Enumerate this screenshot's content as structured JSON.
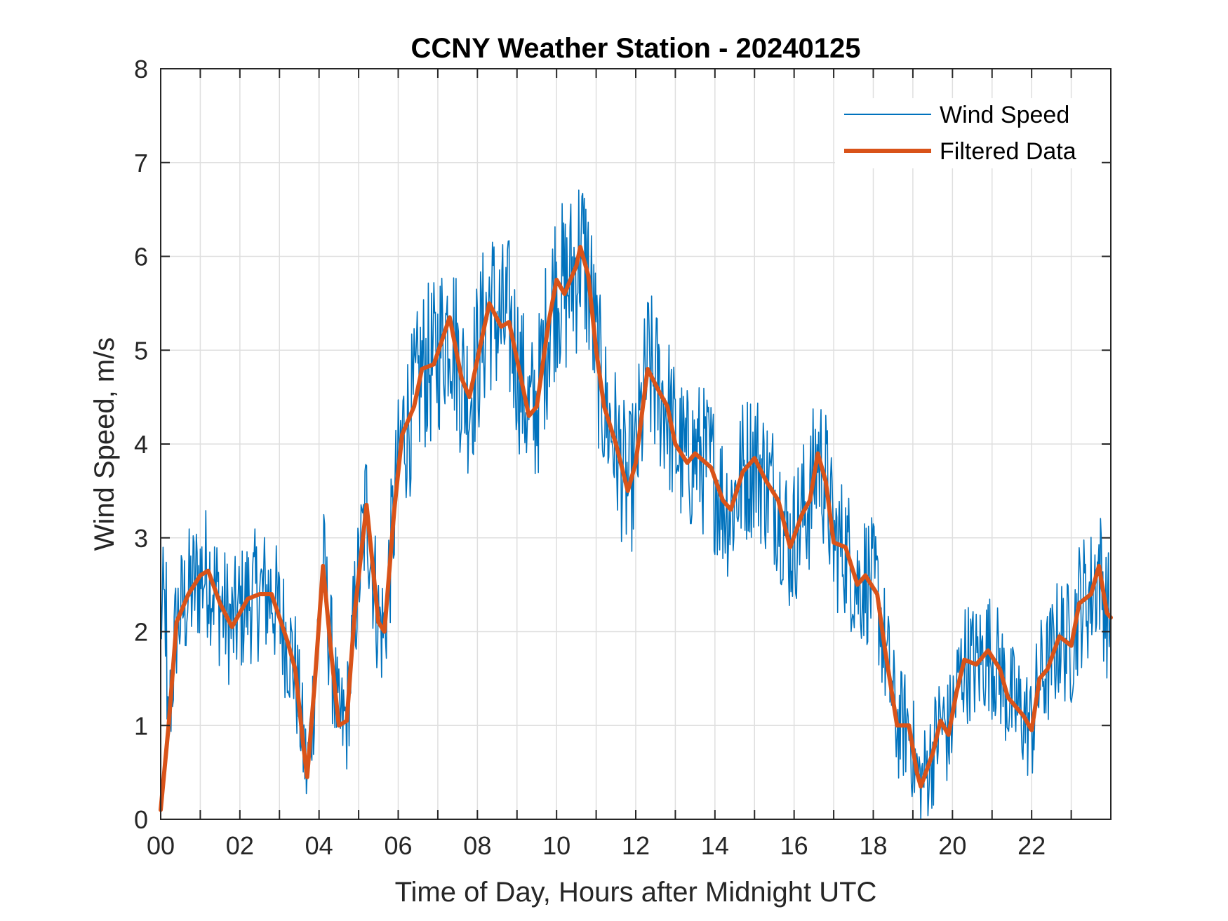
{
  "chart_data": {
    "type": "line",
    "title": "CCNY Weather Station - 20240125",
    "xlabel": "Time of Day, Hours after Midnight UTC",
    "ylabel": "Wind Speed, m/s",
    "xlim": [
      0,
      24
    ],
    "ylim": [
      0,
      8
    ],
    "grid": true,
    "legend_position": "top-right",
    "x_ticks": [
      0,
      2,
      4,
      6,
      8,
      10,
      12,
      14,
      16,
      18,
      20,
      22
    ],
    "x_tick_labels": [
      "00",
      "02",
      "04",
      "06",
      "08",
      "10",
      "12",
      "14",
      "16",
      "18",
      "20",
      "22"
    ],
    "x_minor_ticks": [
      1,
      3,
      5,
      7,
      9,
      11,
      13,
      15,
      17,
      19,
      21,
      23
    ],
    "y_ticks": [
      0,
      1,
      2,
      3,
      4,
      5,
      6,
      7,
      8
    ],
    "y_tick_labels": [
      "0",
      "1",
      "2",
      "3",
      "4",
      "5",
      "6",
      "7",
      "8"
    ],
    "series": [
      {
        "name": "Wind Speed",
        "color": "#0072BD",
        "style": "thin",
        "noise_amplitude": 0.9,
        "x_step_hours": 0.02
      },
      {
        "name": "Filtered Data",
        "color": "#D95319",
        "style": "thick",
        "x": [
          0,
          0.2,
          0.4,
          0.7,
          1.0,
          1.2,
          1.5,
          1.8,
          2.2,
          2.5,
          2.8,
          3.2,
          3.4,
          3.6,
          3.7,
          3.9,
          4.1,
          4.3,
          4.5,
          4.7,
          4.9,
          5.2,
          5.5,
          5.65,
          5.9,
          6.1,
          6.4,
          6.6,
          6.9,
          7.1,
          7.3,
          7.6,
          7.8,
          8.0,
          8.3,
          8.6,
          8.8,
          9.0,
          9.3,
          9.5,
          9.8,
          10.0,
          10.2,
          10.5,
          10.6,
          10.8,
          11.0,
          11.2,
          11.5,
          11.8,
          12.0,
          12.3,
          12.6,
          12.8,
          13.0,
          13.3,
          13.5,
          13.9,
          14.2,
          14.4,
          14.7,
          15.0,
          15.3,
          15.6,
          15.9,
          16.2,
          16.4,
          16.6,
          16.8,
          17.0,
          17.3,
          17.6,
          17.8,
          18.1,
          18.3,
          18.6,
          18.9,
          19.1,
          19.2,
          19.5,
          19.7,
          19.9,
          20.1,
          20.3,
          20.6,
          20.9,
          21.2,
          21.4,
          21.8,
          22.0,
          22.2,
          22.4,
          22.7,
          23.0,
          23.2,
          23.5,
          23.7,
          23.9,
          24.0
        ],
        "values": [
          0.1,
          1.0,
          2.1,
          2.4,
          2.6,
          2.65,
          2.3,
          2.05,
          2.35,
          2.4,
          2.4,
          1.9,
          1.6,
          0.8,
          0.45,
          1.5,
          2.7,
          1.8,
          1.0,
          1.05,
          2.2,
          3.35,
          2.1,
          2.0,
          3.3,
          4.1,
          4.4,
          4.8,
          4.85,
          5.1,
          5.35,
          4.7,
          4.5,
          4.9,
          5.5,
          5.25,
          5.3,
          4.9,
          4.3,
          4.4,
          5.3,
          5.75,
          5.6,
          5.9,
          6.1,
          5.8,
          5.0,
          4.4,
          4.0,
          3.5,
          3.8,
          4.8,
          4.55,
          4.4,
          4.0,
          3.8,
          3.9,
          3.75,
          3.4,
          3.3,
          3.7,
          3.85,
          3.6,
          3.4,
          2.9,
          3.25,
          3.4,
          3.9,
          3.6,
          2.95,
          2.9,
          2.5,
          2.6,
          2.4,
          1.8,
          1.0,
          1.0,
          0.5,
          0.35,
          0.7,
          1.05,
          0.9,
          1.35,
          1.7,
          1.65,
          1.8,
          1.6,
          1.3,
          1.1,
          0.95,
          1.5,
          1.6,
          1.95,
          1.85,
          2.3,
          2.4,
          2.7,
          2.2,
          2.15
        ]
      }
    ]
  }
}
